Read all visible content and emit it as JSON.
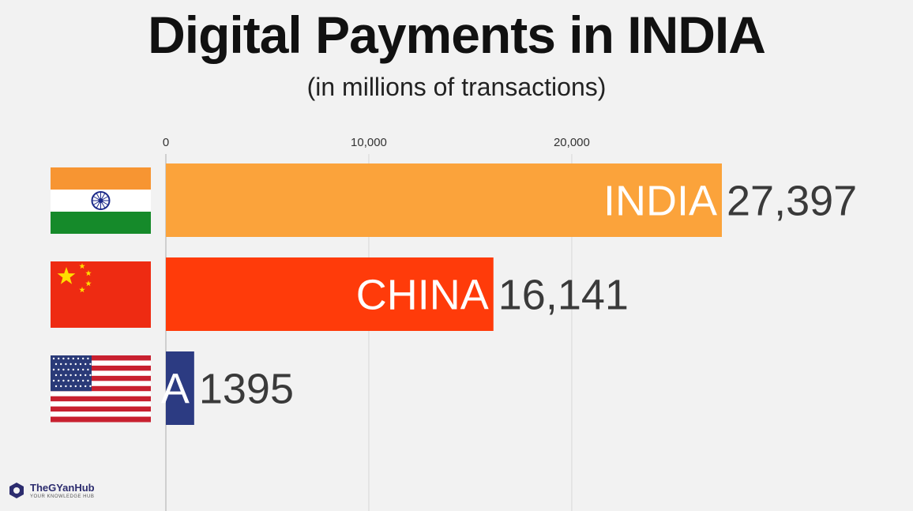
{
  "chart_data": {
    "type": "bar",
    "orientation": "horizontal",
    "title": "Digital Payments in INDIA",
    "subtitle": "(in millions of transactions)",
    "xlim": [
      0,
      27397
    ],
    "x_ticks": [
      0,
      10000,
      20000
    ],
    "x_tick_labels": [
      "0",
      "10,000",
      "20,000"
    ],
    "grid": true,
    "categories": [
      "INDIA",
      "CHINA",
      "A"
    ],
    "values": [
      27397,
      16141,
      1395
    ],
    "value_labels": [
      "27,397",
      "16,141",
      "1395"
    ],
    "bar_colors": [
      "#fba33b",
      "#ff3b0a",
      "#2c3b82"
    ],
    "flags": [
      "india-flag",
      "china-flag",
      "usa-flag"
    ]
  },
  "watermark": {
    "name": "TheGYanHub",
    "tagline": "YOUR KNOWLEDGE HUB",
    "icon": "gyanhub-logo-icon"
  }
}
